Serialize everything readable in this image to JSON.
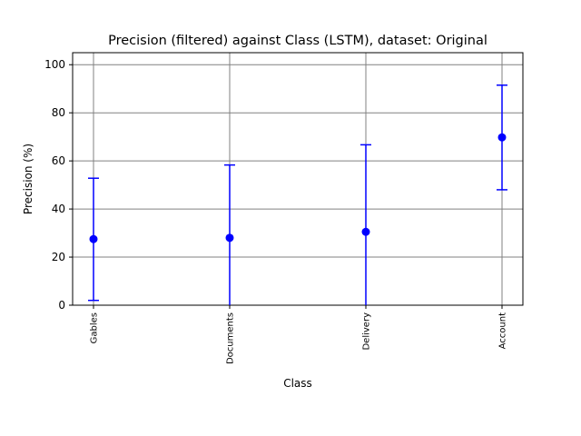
{
  "chart_data": {
    "type": "scatter",
    "title": "Precision (filtered) against Class (LSTM), dataset: Original",
    "xlabel": "Class",
    "ylabel": "Precision (%)",
    "categories": [
      "Gables",
      "Documents",
      "Delivery",
      "Account"
    ],
    "series": [
      {
        "values": [
          27.5,
          28.0,
          30.5,
          69.8
        ],
        "error_low": [
          2.0,
          0.0,
          0.0,
          48.0
        ],
        "error_high": [
          52.8,
          58.3,
          66.7,
          91.5
        ]
      }
    ],
    "ylim": [
      0,
      105
    ],
    "yticks": [
      0,
      20,
      40,
      60,
      80,
      100
    ],
    "grid": true,
    "colors": {
      "series": "#0000ff",
      "grid": "#808080",
      "axes": "#000000"
    }
  }
}
